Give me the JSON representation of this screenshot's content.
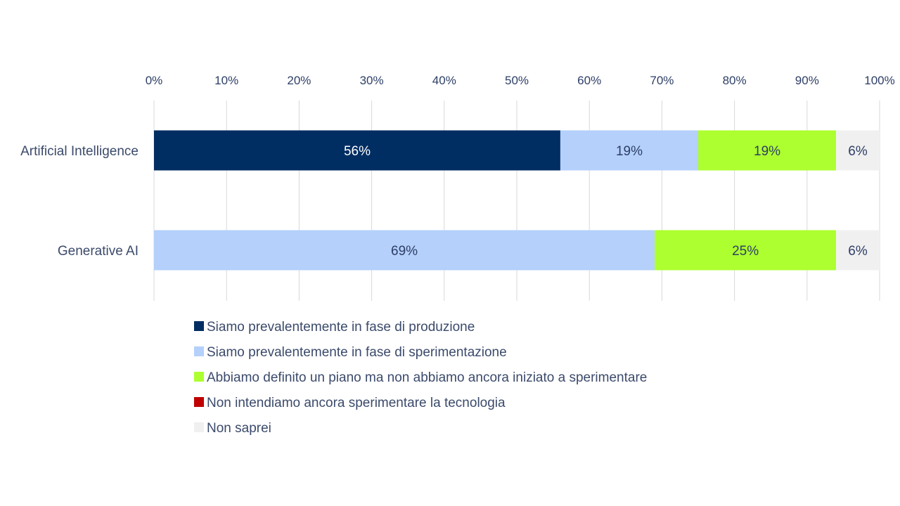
{
  "chart_data": {
    "type": "bar",
    "orientation": "horizontal",
    "stacked": true,
    "title": "",
    "xlabel": "",
    "ylabel": "",
    "xlim": [
      0,
      100
    ],
    "x_ticks": [
      "0%",
      "10%",
      "20%",
      "30%",
      "40%",
      "50%",
      "60%",
      "70%",
      "80%",
      "90%",
      "100%"
    ],
    "x_tick_values": [
      0,
      10,
      20,
      30,
      40,
      50,
      60,
      70,
      80,
      90,
      100
    ],
    "axis_position": "top",
    "grid": true,
    "legend_position": "bottom",
    "categories": [
      "Artificial Intelligence",
      "Generative AI"
    ],
    "series": [
      {
        "name": "Siamo prevalentemente in fase di produzione",
        "color": "#002d62",
        "label_color": "#ffffff",
        "values": [
          56,
          0
        ],
        "labels": [
          "56%",
          ""
        ]
      },
      {
        "name": "Siamo prevalentemente in fase di sperimentazione",
        "color": "#b4d0fb",
        "label_color": "#2d3e66",
        "values": [
          19,
          69
        ],
        "labels": [
          "19%",
          "69%"
        ]
      },
      {
        "name": "Abbiamo definito un piano ma non abbiamo ancora iniziato a sperimentare",
        "color": "#adff2f",
        "label_color": "#2d3e66",
        "values": [
          19,
          25
        ],
        "labels": [
          "19%",
          "25%"
        ]
      },
      {
        "name": "Non intendiamo ancora sperimentare la tecnologia",
        "color": "#c00000",
        "label_color": "#2d3e66",
        "values": [
          0,
          0
        ],
        "labels": [
          "",
          ""
        ]
      },
      {
        "name": "Non saprei",
        "color": "#f0f0f0",
        "label_color": "#2d3e66",
        "values": [
          6,
          6
        ],
        "labels": [
          "6%",
          "6%"
        ]
      }
    ]
  }
}
